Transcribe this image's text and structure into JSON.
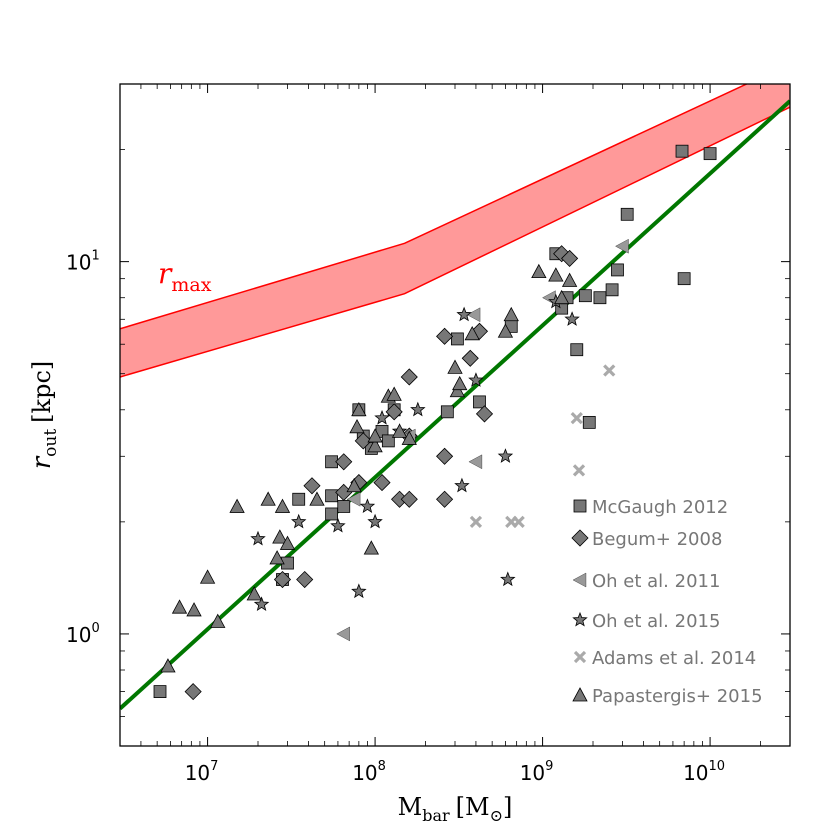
{
  "chart_data": {
    "type": "scatter",
    "x_axis": {
      "label_main": "M",
      "label_sub": "bar",
      "label_unit_open": "[M",
      "label_unit_sub": "⊙",
      "label_unit_close": "]",
      "scale": "log",
      "range": [
        3000000,
        30000000000
      ],
      "ticks": [
        {
          "value": 10000000,
          "base": "10",
          "exp": "7"
        },
        {
          "value": 100000000,
          "base": "10",
          "exp": "8"
        },
        {
          "value": 1000000000,
          "base": "10",
          "exp": "9"
        },
        {
          "value": 10000000000,
          "base": "10",
          "exp": "10"
        }
      ]
    },
    "y_axis": {
      "label_main": "r",
      "label_sub": "out",
      "label_unit": "[kpc]",
      "scale": "log",
      "range": [
        0.5,
        30
      ],
      "ticks": [
        {
          "value": 1,
          "base": "10",
          "exp": "0"
        },
        {
          "value": 10,
          "base": "10",
          "exp": "1"
        }
      ]
    },
    "band": {
      "label_main": "r",
      "label_sub": "max",
      "color": "#ff9999",
      "edge_color": "#ff0000",
      "x": [
        3000000,
        150000000,
        30000000000
      ],
      "lower": [
        4.9,
        8.2,
        26.0
      ],
      "upper": [
        6.6,
        11.2,
        34.0
      ]
    },
    "fit_line": {
      "color": "#007700",
      "x": [
        3000000,
        30000000000
      ],
      "y": [
        0.63,
        27.0
      ]
    },
    "legend_position": "lower-right",
    "series": [
      {
        "name": "McGaugh 2012",
        "marker": "square",
        "color": "#777777",
        "points": [
          [
            5200000,
            0.7
          ],
          [
            28000000,
            1.4
          ],
          [
            30000000,
            1.55
          ],
          [
            35000000,
            2.3
          ],
          [
            55000000,
            2.9
          ],
          [
            55000000,
            2.1
          ],
          [
            55000000,
            2.35
          ],
          [
            65000000,
            2.2
          ],
          [
            80000000,
            4.0
          ],
          [
            85000000,
            3.4
          ],
          [
            95000000,
            3.15
          ],
          [
            110000000,
            3.5
          ],
          [
            120000000,
            3.3
          ],
          [
            130000000,
            4.0
          ],
          [
            270000000,
            3.95
          ],
          [
            310000000,
            6.2
          ],
          [
            420000000,
            4.2
          ],
          [
            650000000,
            6.7
          ],
          [
            1200000000,
            10.5
          ],
          [
            1300000000,
            7.5
          ],
          [
            1400000000,
            8.0
          ],
          [
            1600000000,
            5.8
          ],
          [
            1900000000,
            3.7
          ],
          [
            1800000000,
            8.1
          ],
          [
            2200000000,
            8.0
          ],
          [
            2600000000,
            8.4
          ],
          [
            2800000000,
            9.5
          ],
          [
            3200000000,
            13.4
          ],
          [
            6800000000,
            19.8
          ],
          [
            7000000000,
            9.0
          ],
          [
            10000000000,
            19.5
          ]
        ]
      },
      {
        "name": "Begum+ 2008",
        "marker": "diamond",
        "color": "#777777",
        "points": [
          [
            8200000,
            0.7
          ],
          [
            28000000,
            1.4
          ],
          [
            38000000,
            1.4
          ],
          [
            42000000,
            2.5
          ],
          [
            65000000,
            2.9
          ],
          [
            65000000,
            2.4
          ],
          [
            80000000,
            2.55
          ],
          [
            85000000,
            3.3
          ],
          [
            110000000,
            2.55
          ],
          [
            130000000,
            3.95
          ],
          [
            140000000,
            2.3
          ],
          [
            160000000,
            4.9
          ],
          [
            160000000,
            3.4
          ],
          [
            160000000,
            2.3
          ],
          [
            260000000,
            6.3
          ],
          [
            260000000,
            3.0
          ],
          [
            260000000,
            2.3
          ],
          [
            370000000,
            5.5
          ],
          [
            420000000,
            6.5
          ],
          [
            450000000,
            3.9
          ],
          [
            1300000000,
            10.5
          ],
          [
            1450000000,
            10.2
          ]
        ]
      },
      {
        "name": "Oh et al. 2011",
        "marker": "triangle-left",
        "color": "#999999",
        "points": [
          [
            65000000,
            1.0
          ],
          [
            75000000,
            2.3
          ],
          [
            160000000,
            3.4
          ],
          [
            390000000,
            7.2
          ],
          [
            400000000,
            2.9
          ],
          [
            1100000000,
            8.0
          ],
          [
            3000000000,
            11.0
          ]
        ]
      },
      {
        "name": "Oh et al. 2015",
        "marker": "star",
        "color": "#777777",
        "points": [
          [
            20000000,
            1.8
          ],
          [
            21000000,
            1.2
          ],
          [
            35000000,
            2.0
          ],
          [
            60000000,
            1.95
          ],
          [
            80000000,
            1.3
          ],
          [
            90000000,
            2.2
          ],
          [
            100000000,
            2.0
          ],
          [
            110000000,
            3.8
          ],
          [
            140000000,
            3.5
          ],
          [
            180000000,
            4.0
          ],
          [
            330000000,
            2.5
          ],
          [
            340000000,
            7.2
          ],
          [
            400000000,
            4.8
          ],
          [
            600000000,
            3.0
          ],
          [
            620000000,
            1.4
          ],
          [
            1200000000,
            7.8
          ],
          [
            1500000000,
            7.0
          ]
        ]
      },
      {
        "name": "Adams et al. 2014",
        "marker": "x",
        "color": "#aaaaaa",
        "points": [
          [
            400000000,
            2.0
          ],
          [
            650000000,
            2.0
          ],
          [
            720000000,
            2.0
          ],
          [
            1600000000,
            3.8
          ],
          [
            1650000000,
            2.75
          ],
          [
            2500000000,
            5.1
          ]
        ]
      },
      {
        "name": "Papastergis+ 2015",
        "marker": "triangle-up",
        "color": "#777777",
        "points": [
          [
            5800000,
            0.82
          ],
          [
            6800000,
            1.18
          ],
          [
            8300000,
            1.16
          ],
          [
            10000000,
            1.42
          ],
          [
            11500000,
            1.08
          ],
          [
            15000000,
            2.2
          ],
          [
            19000000,
            1.28
          ],
          [
            23000000,
            2.3
          ],
          [
            26000000,
            1.6
          ],
          [
            27000000,
            1.82
          ],
          [
            28000000,
            2.2
          ],
          [
            30000000,
            1.75
          ],
          [
            45000000,
            2.3
          ],
          [
            75000000,
            2.5
          ],
          [
            78000000,
            3.6
          ],
          [
            80000000,
            4.0
          ],
          [
            95000000,
            1.7
          ],
          [
            100000000,
            3.2
          ],
          [
            100000000,
            3.4
          ],
          [
            120000000,
            4.35
          ],
          [
            130000000,
            4.4
          ],
          [
            140000000,
            3.5
          ],
          [
            160000000,
            3.35
          ],
          [
            300000000,
            5.2
          ],
          [
            310000000,
            4.5
          ],
          [
            320000000,
            4.7
          ],
          [
            380000000,
            6.4
          ],
          [
            600000000,
            6.5
          ],
          [
            650000000,
            7.2
          ],
          [
            950000000,
            9.4
          ],
          [
            1200000000,
            9.2
          ],
          [
            1300000000,
            8.0
          ],
          [
            1450000000,
            8.9
          ]
        ]
      }
    ]
  }
}
